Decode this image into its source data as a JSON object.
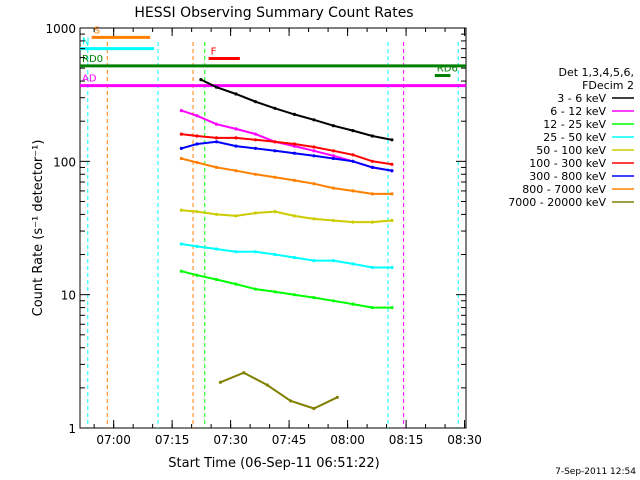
{
  "chart_data": {
    "type": "line",
    "title": "HESSI Observing Summary Count Rates",
    "xlabel": "Start Time (06-Sep-11 06:51:22)",
    "ylabel": "Count Rate (s⁻¹ detector⁻¹)",
    "footer": "7-Sep-2011 12:54",
    "x_unit": "minutes after 06:51:22",
    "xlim": [
      0,
      99
    ],
    "ylim": [
      1,
      1000
    ],
    "y_scale": "log",
    "grid": false,
    "legend_position": "right",
    "legend_header": [
      "Det 1,3,4,5,6,",
      "FDecim 2"
    ],
    "x_ticks": [
      {
        "x": 8.63,
        "label": "07:00"
      },
      {
        "x": 23.63,
        "label": "07:15"
      },
      {
        "x": 38.63,
        "label": "07:30"
      },
      {
        "x": 53.63,
        "label": "07:45"
      },
      {
        "x": 68.63,
        "label": "08:00"
      },
      {
        "x": 83.63,
        "label": "08:15"
      },
      {
        "x": 98.63,
        "label": "08:30"
      }
    ],
    "y_ticks": [
      {
        "y": 1,
        "label": "1"
      },
      {
        "y": 10,
        "label": "10"
      },
      {
        "y": 100,
        "label": "100"
      },
      {
        "y": 1000,
        "label": "1000"
      }
    ],
    "series": [
      {
        "name": "3 - 6 keV",
        "color": "#000000",
        "points": [
          [
            31,
            410
          ],
          [
            35,
            360
          ],
          [
            40,
            320
          ],
          [
            45,
            280
          ],
          [
            50,
            250
          ],
          [
            55,
            225
          ],
          [
            60,
            205
          ],
          [
            65,
            185
          ],
          [
            70,
            170
          ],
          [
            75,
            155
          ],
          [
            80,
            145
          ]
        ]
      },
      {
        "name": "6 - 12 keV",
        "color": "#ff00ff",
        "points": [
          [
            26,
            240
          ],
          [
            30,
            220
          ],
          [
            35,
            190
          ],
          [
            40,
            175
          ],
          [
            45,
            160
          ],
          [
            50,
            140
          ],
          [
            55,
            130
          ],
          [
            60,
            120
          ],
          [
            65,
            110
          ],
          [
            70,
            100
          ],
          [
            75,
            90
          ],
          [
            80,
            85
          ]
        ]
      },
      {
        "name": "12 - 25 keV",
        "color": "#00ff00",
        "points": [
          [
            26,
            15
          ],
          [
            30,
            14
          ],
          [
            35,
            13
          ],
          [
            40,
            12
          ],
          [
            45,
            11
          ],
          [
            50,
            10.5
          ],
          [
            55,
            10
          ],
          [
            60,
            9.5
          ],
          [
            65,
            9
          ],
          [
            70,
            8.5
          ],
          [
            75,
            8
          ],
          [
            80,
            8
          ]
        ]
      },
      {
        "name": "25 - 50 keV",
        "color": "#00ffff",
        "points": [
          [
            26,
            24
          ],
          [
            30,
            23
          ],
          [
            35,
            22
          ],
          [
            40,
            21
          ],
          [
            45,
            21
          ],
          [
            50,
            20
          ],
          [
            55,
            19
          ],
          [
            60,
            18
          ],
          [
            65,
            18
          ],
          [
            70,
            17
          ],
          [
            75,
            16
          ],
          [
            80,
            16
          ]
        ]
      },
      {
        "name": "50 - 100 keV",
        "color": "#cccc00",
        "points": [
          [
            26,
            43
          ],
          [
            30,
            42
          ],
          [
            35,
            40
          ],
          [
            40,
            39
          ],
          [
            45,
            41
          ],
          [
            50,
            42
          ],
          [
            55,
            39
          ],
          [
            60,
            37
          ],
          [
            65,
            36
          ],
          [
            70,
            35
          ],
          [
            75,
            35
          ],
          [
            80,
            36
          ]
        ]
      },
      {
        "name": "100 - 300 keV",
        "color": "#ff0000",
        "points": [
          [
            26,
            160
          ],
          [
            30,
            155
          ],
          [
            35,
            150
          ],
          [
            40,
            150
          ],
          [
            45,
            145
          ],
          [
            50,
            140
          ],
          [
            55,
            135
          ],
          [
            60,
            128
          ],
          [
            65,
            120
          ],
          [
            70,
            112
          ],
          [
            75,
            100
          ],
          [
            80,
            95
          ]
        ]
      },
      {
        "name": "300 - 800 keV",
        "color": "#0000ff",
        "points": [
          [
            26,
            125
          ],
          [
            30,
            135
          ],
          [
            35,
            140
          ],
          [
            40,
            130
          ],
          [
            45,
            125
          ],
          [
            50,
            120
          ],
          [
            55,
            115
          ],
          [
            60,
            110
          ],
          [
            65,
            105
          ],
          [
            70,
            100
          ],
          [
            75,
            90
          ],
          [
            80,
            85
          ]
        ]
      },
      {
        "name": "800 - 7000 keV",
        "color": "#ff8000",
        "points": [
          [
            26,
            105
          ],
          [
            30,
            98
          ],
          [
            35,
            90
          ],
          [
            40,
            85
          ],
          [
            45,
            80
          ],
          [
            50,
            76
          ],
          [
            55,
            72
          ],
          [
            60,
            68
          ],
          [
            65,
            63
          ],
          [
            70,
            60
          ],
          [
            75,
            57
          ],
          [
            80,
            57
          ]
        ]
      },
      {
        "name": "7000 - 20000 keV",
        "color": "#808000",
        "points": [
          [
            36,
            2.2
          ],
          [
            42,
            2.6
          ],
          [
            48,
            2.1
          ],
          [
            54,
            1.6
          ],
          [
            60,
            1.4
          ],
          [
            66,
            1.7
          ]
        ]
      }
    ],
    "annotations": [
      {
        "label": "S",
        "color": "#ff8000",
        "x1": 3,
        "x2": 18,
        "y": 850
      },
      {
        "label": "N",
        "color": "#00ffff",
        "x1": 0,
        "x2": 19,
        "y": 700
      },
      {
        "label": "F",
        "color": "#ff0000",
        "x1": 33,
        "x2": 41,
        "y": 590
      },
      {
        "label": "RD0",
        "color": "#008000",
        "x1": 0,
        "x2": 99,
        "y": 520
      },
      {
        "label": "RD6",
        "color": "#008000",
        "x1": 91,
        "x2": 95,
        "y": 440
      },
      {
        "label": "AD",
        "color": "#ff00ff",
        "x1": 0,
        "x2": 99,
        "y": 370
      }
    ]
  }
}
